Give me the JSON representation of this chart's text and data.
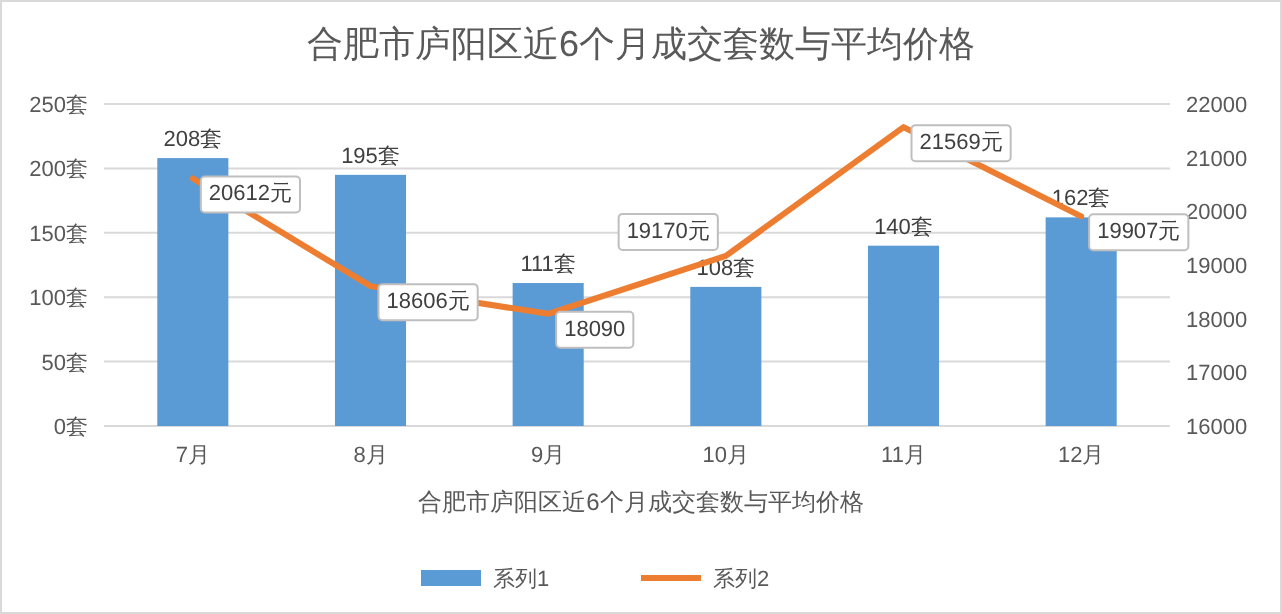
{
  "chart_data": {
    "type": "bar",
    "title": "合肥市庐阳区近6个月成交套数与平均价格",
    "xlabel": "合肥市庐阳区近6个月成交套数与平均价格",
    "categories": [
      "7月",
      "8月",
      "9月",
      "10月",
      "11月",
      "12月"
    ],
    "series": [
      {
        "name": "系列1",
        "color": "#5b9bd5",
        "values": [
          208,
          195,
          111,
          108,
          140,
          162
        ],
        "value_labels": [
          "208套",
          "195套",
          "111套",
          "108套",
          "140套",
          "162套"
        ]
      },
      {
        "name": "系列2",
        "type": "line",
        "axis": "y2",
        "color": "#ed7d31",
        "values": [
          20612,
          18606,
          18090,
          19170,
          21569,
          19907
        ],
        "value_labels": [
          "20612元",
          "18606元",
          "18090",
          "19170元",
          "21569元",
          "19907元"
        ]
      }
    ],
    "ylim": [
      0,
      250
    ],
    "yticks": [
      {
        "value": 0,
        "label": "0套"
      },
      {
        "value": 50,
        "label": "50套"
      },
      {
        "value": 100,
        "label": "100套"
      },
      {
        "value": 150,
        "label": "150套"
      },
      {
        "value": 200,
        "label": "200套"
      },
      {
        "value": 250,
        "label": "250套"
      }
    ],
    "y2lim": [
      16000,
      22000
    ],
    "y2ticks": [
      16000,
      17000,
      18000,
      19000,
      20000,
      21000,
      22000
    ],
    "grid": "y",
    "legend": "bottom"
  }
}
